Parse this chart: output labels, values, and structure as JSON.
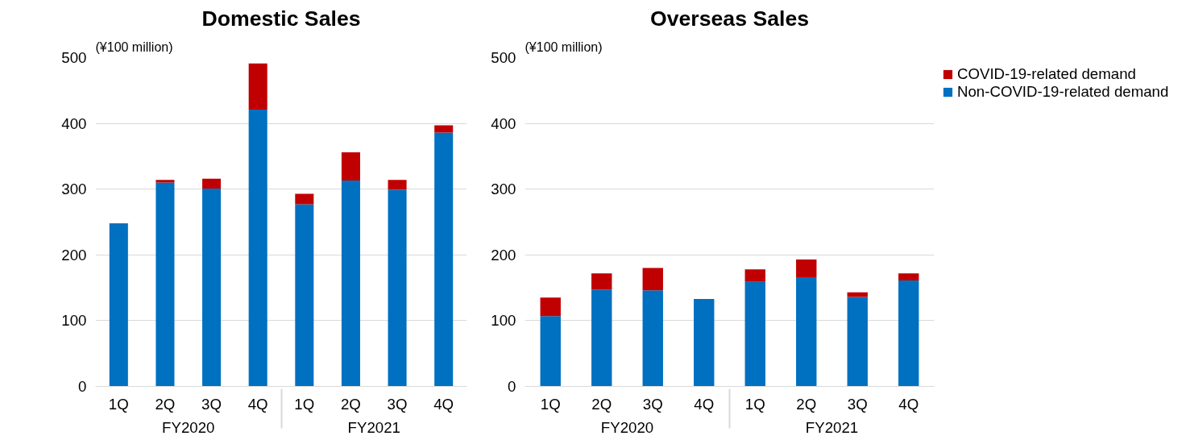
{
  "chart_data": [
    {
      "type": "bar",
      "title": "Domestic Sales",
      "ylabel": "(¥100 million)",
      "stacked": true,
      "categories": [
        "1Q",
        "2Q",
        "3Q",
        "4Q",
        "1Q",
        "2Q",
        "3Q",
        "4Q"
      ],
      "annotations": [
        "FY2020",
        "FY2021"
      ],
      "series": [
        {
          "color": "#0070c0",
          "values": [
            247,
            310,
            301,
            421,
            277,
            313,
            299,
            386
          ]
        },
        {
          "color": "#c00000",
          "values": [
            1,
            4,
            15,
            70,
            16,
            43,
            15,
            11
          ]
        }
      ],
      "ylim": [
        0,
        500
      ],
      "yticks": [
        0,
        100,
        200,
        300,
        400,
        500
      ],
      "grid": "y"
    },
    {
      "type": "bar",
      "title": "Overseas Sales",
      "ylabel": "(¥100 million)",
      "stacked": true,
      "categories": [
        "1Q",
        "2Q",
        "3Q",
        "4Q",
        "1Q",
        "2Q",
        "3Q",
        "4Q"
      ],
      "annotations": [
        "FY2020",
        "FY2021"
      ],
      "series": [
        {
          "name": "Non-COVID-19-related demand",
          "color": "#0070c0",
          "values": [
            107,
            147,
            146,
            133,
            159,
            166,
            136,
            161
          ]
        },
        {
          "name": "COVID-19-related demand",
          "color": "#c00000",
          "values": [
            28,
            25,
            34,
            0,
            19,
            27,
            7,
            11
          ]
        }
      ],
      "ylim": [
        0,
        500
      ],
      "yticks": [
        0,
        100,
        200,
        300,
        400,
        500
      ],
      "grid": "y",
      "legend": "top right"
    }
  ]
}
